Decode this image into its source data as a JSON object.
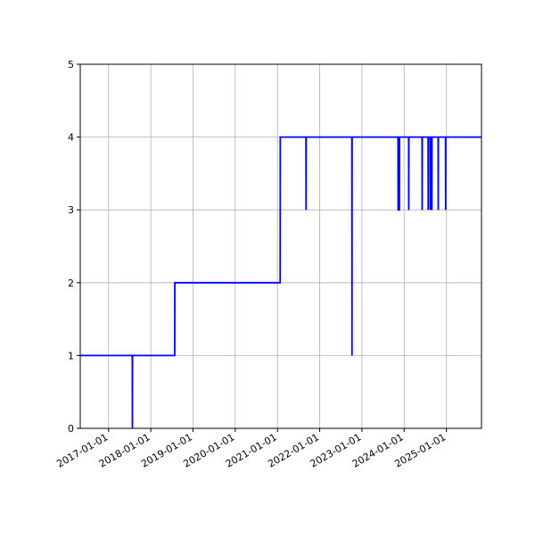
{
  "chart_data": {
    "type": "line",
    "color": "#0000ff",
    "grid": true,
    "x": [
      "2016-05-01",
      "2017-07-25",
      "2017-07-26",
      "2017-07-27",
      "2018-07-27",
      "2018-07-28",
      "2021-01-24",
      "2021-01-25",
      "2021-09-04",
      "2021-09-05",
      "2021-09-06",
      "2022-10-06",
      "2022-10-07",
      "2022-10-08",
      "2023-11-09",
      "2023-11-10",
      "2023-11-21",
      "2023-11-22",
      "2024-02-09",
      "2024-02-10",
      "2024-02-11",
      "2024-06-04",
      "2024-06-05",
      "2024-06-06",
      "2024-07-26",
      "2024-07-27",
      "2024-07-28",
      "2024-08-13",
      "2024-08-14",
      "2024-08-15",
      "2024-08-27",
      "2024-08-28",
      "2024-08-29",
      "2024-10-21",
      "2024-10-22",
      "2024-10-23",
      "2024-12-24",
      "2024-12-25",
      "2024-12-26",
      "2025-10-31"
    ],
    "values": [
      1,
      1,
      0,
      1,
      1,
      2,
      2,
      4,
      4,
      3,
      4,
      4,
      1,
      4,
      4,
      3,
      3,
      4,
      4,
      3,
      4,
      4,
      3,
      4,
      4,
      3,
      4,
      4,
      3,
      4,
      4,
      3,
      4,
      4,
      3,
      4,
      4,
      3,
      4,
      4
    ],
    "xlim": [
      "2016-05-01",
      "2025-10-31"
    ],
    "xticks": [
      "2017-01-01",
      "2018-01-01",
      "2019-01-01",
      "2020-01-01",
      "2021-01-01",
      "2022-01-01",
      "2023-01-01",
      "2024-01-01",
      "2025-01-01"
    ],
    "ylim": [
      0,
      5
    ],
    "yticks": [
      0,
      1,
      2,
      3,
      4,
      5
    ]
  }
}
